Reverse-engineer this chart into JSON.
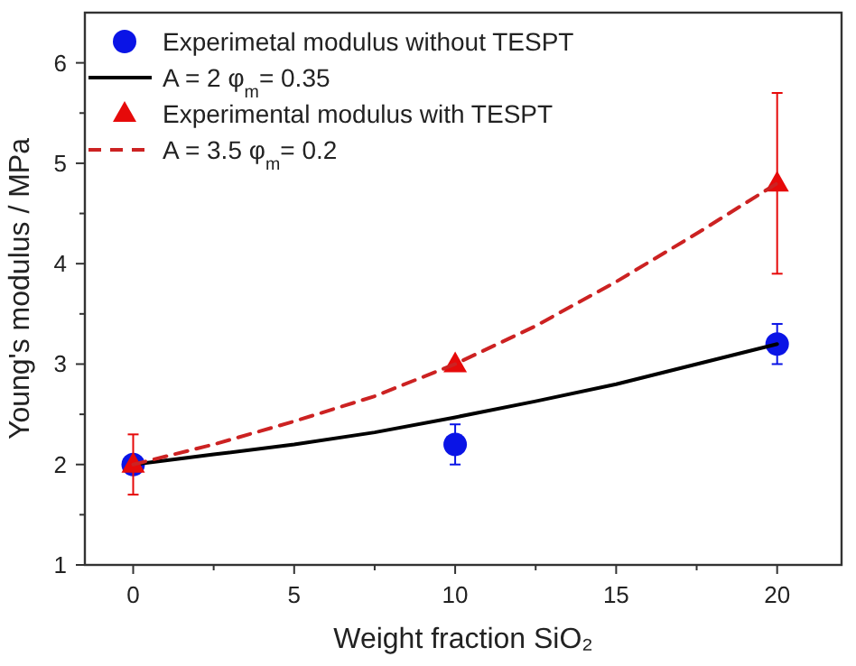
{
  "chart_data": {
    "type": "scatter",
    "xlabel": "Weight fraction SiO₂",
    "ylabel": "Young's modulus / MPa",
    "xlim": [
      -1.5,
      22
    ],
    "ylim": [
      1,
      6.5
    ],
    "xticks": [
      0,
      {
        "value": 2.5,
        "label": null
      },
      5,
      {
        "value": 7.5,
        "label": null
      },
      10,
      {
        "value": 12.5,
        "label": null
      },
      15,
      {
        "value": 17.5,
        "label": null
      },
      20
    ],
    "yticks": [
      1,
      {
        "value": 1.5,
        "label": null
      },
      2,
      {
        "value": 2.5,
        "label": null
      },
      3,
      {
        "value": 3.5,
        "label": null
      },
      4,
      {
        "value": 4.5,
        "label": null
      },
      5,
      {
        "value": 5.5,
        "label": null
      },
      6
    ],
    "legend": "top left",
    "grid": false,
    "series": [
      {
        "name": "Experimetal modulus without TESPT",
        "marker": "circle",
        "color": "#0a14e6",
        "x": [
          0,
          10,
          20
        ],
        "values": [
          2,
          2.2,
          3.2
        ],
        "errors": [
          null,
          0.2,
          0.2
        ]
      },
      {
        "name": "A = 2 φ$_{m}$= 0.35",
        "type": "line",
        "marker": "none",
        "line_style": "solid",
        "color": "#000000",
        "x": [
          0,
          2.5,
          5,
          7.5,
          10,
          12.5,
          15,
          17.5,
          20
        ],
        "values": [
          2,
          2.1,
          2.2,
          2.32,
          2.47,
          2.63,
          2.8,
          3.0,
          3.2
        ]
      },
      {
        "name": "Experimental modulus with TESPT",
        "marker": "triangle",
        "color": "#e60a0a",
        "x": [
          0,
          10,
          20
        ],
        "values": [
          2,
          3,
          4.8
        ],
        "errors": [
          0.3,
          null,
          0.9
        ]
      },
      {
        "name": "A = 3.5 φ$_{m}$= 0.2",
        "type": "line",
        "marker": "none",
        "line_style": "dashed",
        "color": "#cc2222",
        "x": [
          0,
          2.5,
          5,
          7.5,
          10,
          12.5,
          15,
          17.5,
          20
        ],
        "values": [
          2,
          2.2,
          2.43,
          2.68,
          3.0,
          3.38,
          3.82,
          4.3,
          4.8
        ]
      }
    ]
  }
}
